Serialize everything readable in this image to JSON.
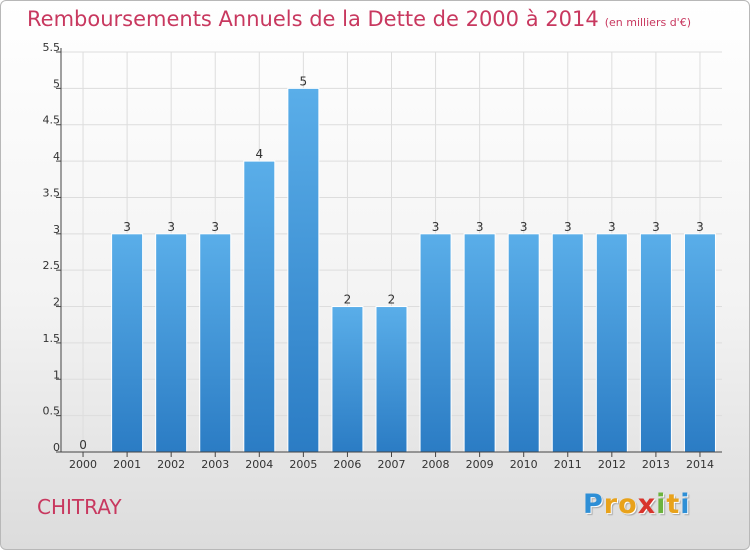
{
  "title": "Remboursements Annuels de la Dette de 2000 à 2014",
  "subtitle": "(en milliers d'€)",
  "commune": "CHITRAY",
  "logo": {
    "text": "Proxiti",
    "letters": [
      {
        "ch": "P",
        "color": "#2e8fd6"
      },
      {
        "ch": "r",
        "color": "#e8a21a"
      },
      {
        "ch": "o",
        "color": "#e8a21a"
      },
      {
        "ch": "x",
        "color": "#d8342c"
      },
      {
        "ch": "i",
        "color": "#6cb33e"
      },
      {
        "ch": "t",
        "color": "#e8a21a"
      },
      {
        "ch": "i",
        "color": "#2e8fd6"
      }
    ]
  },
  "colors": {
    "title": "#c8385f",
    "bar_top": "#5aaee9",
    "bar_bottom": "#2b7cc4",
    "grid": "#dddddd",
    "axis": "#444444"
  },
  "chart_data": {
    "type": "bar",
    "title": "Remboursements Annuels de la Dette de 2000 à 2014",
    "xlabel": "",
    "ylabel": "",
    "categories": [
      "2000",
      "2001",
      "2002",
      "2003",
      "2004",
      "2005",
      "2006",
      "2007",
      "2008",
      "2009",
      "2010",
      "2011",
      "2012",
      "2013",
      "2014"
    ],
    "values": [
      0,
      3,
      3,
      3,
      4,
      5,
      2,
      2,
      3,
      3,
      3,
      3,
      3,
      3,
      3
    ],
    "data_labels": [
      "0",
      "3",
      "3",
      "3",
      "4",
      "5",
      "2",
      "2",
      "3",
      "3",
      "3",
      "3",
      "3",
      "3",
      "3"
    ],
    "ylim": [
      0,
      5.5
    ],
    "yticks": [
      0,
      0.5,
      1,
      1.5,
      2,
      2.5,
      3,
      3.5,
      4,
      4.5,
      5,
      5.5
    ],
    "ytick_labels": [
      "0",
      "0.5",
      "1",
      "1.5",
      "2",
      "2.5",
      "3",
      "3.5",
      "4",
      "4.5",
      "5",
      "5.5"
    ],
    "grid": true,
    "legend": "none"
  }
}
